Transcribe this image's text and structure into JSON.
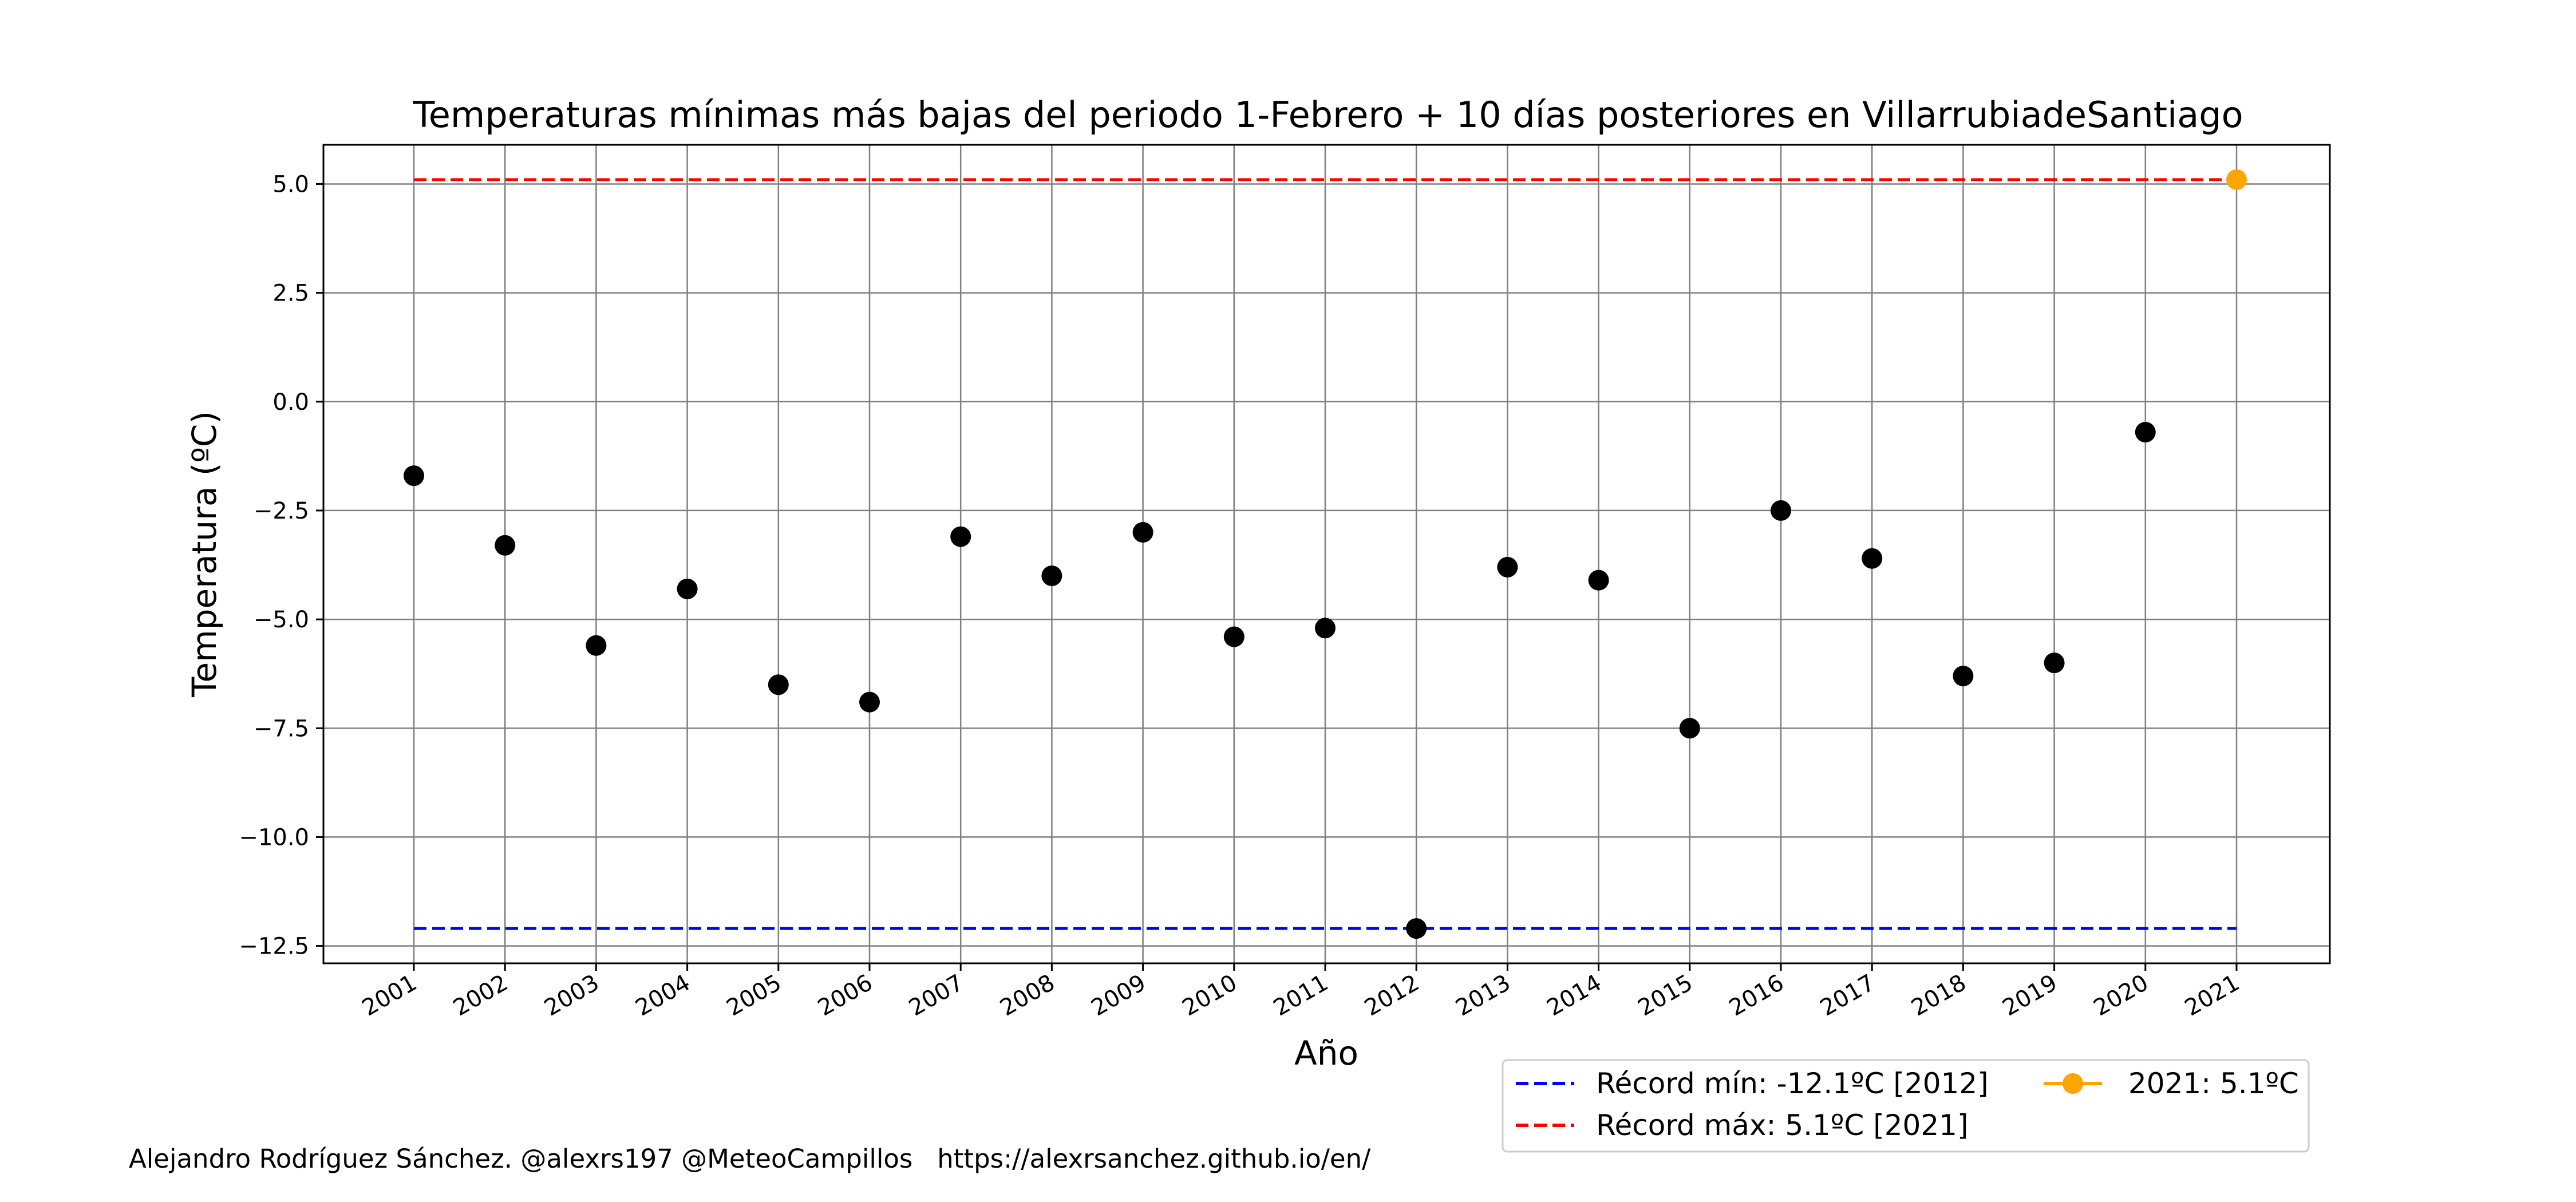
{
  "chart_data": {
    "type": "scatter",
    "title": "Temperaturas mínimas más bajas del periodo 1-Febrero + 10 días posteriores en VillarrubiadeSantiago",
    "xlabel": "Año",
    "ylabel": "Temperatura (ºC)",
    "ylim": [
      -12.9,
      5.9
    ],
    "yticks": [
      "5.0",
      "2.5",
      "0.0",
      "−2.5",
      "−5.0",
      "−7.5",
      "−10.0",
      "−12.5"
    ],
    "ytick_values": [
      5.0,
      2.5,
      0.0,
      -2.5,
      -5.0,
      -7.5,
      -10.0,
      -12.5
    ],
    "grid": true,
    "x": [
      "2001",
      "2002",
      "2003",
      "2004",
      "2005",
      "2006",
      "2007",
      "2008",
      "2009",
      "2010",
      "2011",
      "2012",
      "2013",
      "2014",
      "2015",
      "2016",
      "2017",
      "2018",
      "2019",
      "2020",
      "2021"
    ],
    "values": [
      -1.7,
      -3.3,
      -5.6,
      -4.3,
      -6.5,
      -6.9,
      -3.1,
      -4.0,
      -3.0,
      -5.4,
      -5.2,
      -12.1,
      -3.8,
      -4.1,
      -7.5,
      -2.5,
      -3.6,
      -6.3,
      -6.0,
      -0.7,
      5.1
    ],
    "series": [
      {
        "color": "#000000",
        "marker": "circle"
      },
      {
        "name": "2021: 5.1ºC",
        "color": "#ffa500",
        "marker": "circle-line",
        "x": "2021",
        "value": 5.1
      }
    ],
    "reference_lines": [
      {
        "name": "Récord mín: -12.1ºC [2012]",
        "value": -12.1,
        "color": "#0000ff",
        "style": "dashed"
      },
      {
        "name": "Récord máx: 5.1ºC [2021]",
        "value": 5.1,
        "color": "#ff0000",
        "style": "dashed"
      }
    ],
    "legend_position": "bottom-right"
  },
  "footer": {
    "credit": "Alejandro Rodríguez Sánchez. @alexrs197 @MeteoCampillos   https://alexrsanchez.github.io/en/"
  }
}
